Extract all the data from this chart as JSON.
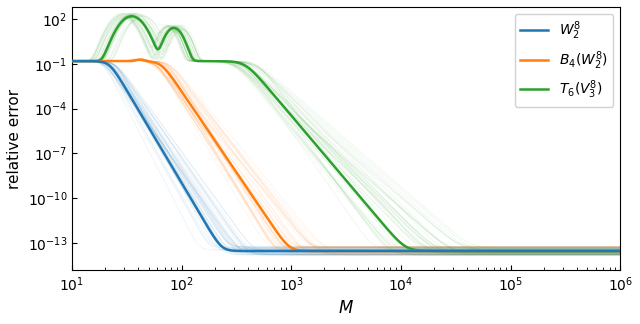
{
  "xlabel": "$M$",
  "ylabel": "relative error",
  "blue_color": "#1f77b4",
  "orange_color": "#ff7f0e",
  "green_color": "#2ca02c",
  "legend": [
    "$W_2^8$",
    "$B_4(W_2^8)$",
    "$T_6(V_3^8)$"
  ],
  "blue_trans": 22,
  "orange_trans": 65,
  "green_trans": 380,
  "high_val": 0.15,
  "floor": 3e-14,
  "ylim_low": -14.8,
  "ylim_high": 2.8,
  "n_samples": 40,
  "alpha_faint": 0.07
}
